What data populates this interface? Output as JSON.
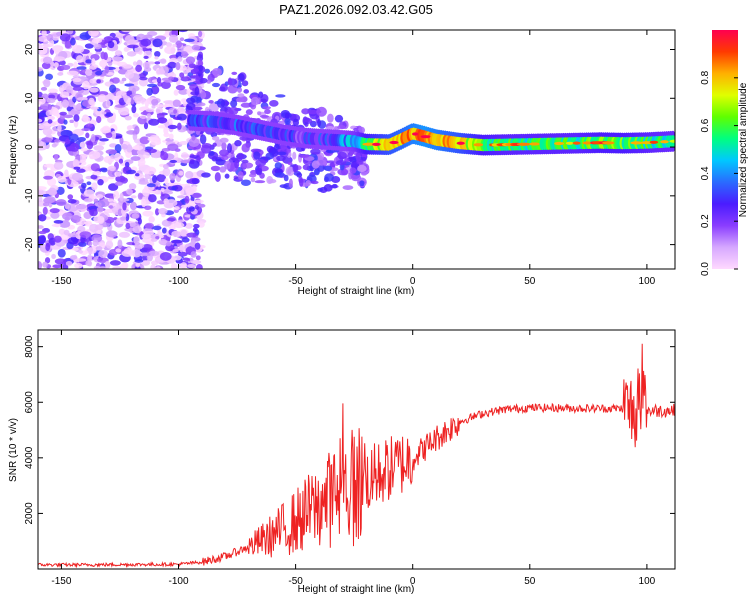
{
  "title": "PAZ1.2026.092.03.42.G05",
  "chart_data": [
    {
      "type": "heatmap",
      "xlabel": "Height of straight line (km)",
      "ylabel": "Frequency (Hz)",
      "xlim": [
        -160,
        112
      ],
      "ylim": [
        -25,
        24
      ],
      "xticks": [
        -150,
        -100,
        -50,
        0,
        50,
        100
      ],
      "yticks": [
        -20,
        -10,
        0,
        10,
        20
      ],
      "colorbar": {
        "label": "Normalized spectral amplitude",
        "range": [
          0,
          1
        ],
        "ticks": [
          0.0,
          0.2,
          0.4,
          0.6,
          0.8
        ],
        "colors": [
          "#ffd9ff",
          "#d6a8ff",
          "#8a3dff",
          "#4a1cff",
          "#2a6bff",
          "#00c8ff",
          "#00ff80",
          "#5fff00",
          "#e0ff00",
          "#ffb000",
          "#ff3a00",
          "#ff0050"
        ]
      },
      "main_tone": {
        "x": [
          -95,
          -85,
          -75,
          -65,
          -55,
          -45,
          -35,
          -25,
          -20,
          -10,
          -5,
          0,
          5,
          10,
          20,
          30,
          40,
          50,
          60,
          70,
          80,
          90,
          100,
          112
        ],
        "freq": [
          5.5,
          5.2,
          4.5,
          3.5,
          2.5,
          1.8,
          1.5,
          1.2,
          0.6,
          0.5,
          1.6,
          2.8,
          2.2,
          1.5,
          0.8,
          0.4,
          0.5,
          0.6,
          0.7,
          0.8,
          0.9,
          0.8,
          0.9,
          1.2
        ],
        "amplitude": [
          0.25,
          0.3,
          0.3,
          0.28,
          0.25,
          0.25,
          0.3,
          0.45,
          0.6,
          0.75,
          0.8,
          0.85,
          0.9,
          0.85,
          0.75,
          0.6,
          0.55,
          0.55,
          0.55,
          0.55,
          0.6,
          0.6,
          0.55,
          0.5
        ]
      }
    },
    {
      "type": "line",
      "xlabel": "Height of straight line (km)",
      "ylabel": "SNR (10 * v/v)",
      "xlim": [
        -160,
        112
      ],
      "ylim": [
        0,
        8600
      ],
      "xticks": [
        -150,
        -100,
        -50,
        0,
        50,
        100
      ],
      "yticks": [
        2000,
        4000,
        6000,
        8000
      ],
      "line_color": "#ee2222",
      "series": [
        {
          "name": "SNR",
          "x": [
            -160,
            -140,
            -120,
            -100,
            -90,
            -80,
            -70,
            -60,
            -50,
            -40,
            -30,
            -25,
            -20,
            -10,
            0,
            10,
            20,
            30,
            40,
            50,
            60,
            70,
            80,
            90,
            95,
            100,
            105,
            112
          ],
          "values": [
            150,
            150,
            160,
            170,
            250,
            450,
            800,
            1200,
            1700,
            2300,
            2800,
            3000,
            3200,
            3600,
            4000,
            4700,
            5300,
            5600,
            5750,
            5800,
            5800,
            5780,
            5780,
            5780,
            5700,
            5700,
            5700,
            5700
          ]
        }
      ]
    }
  ]
}
